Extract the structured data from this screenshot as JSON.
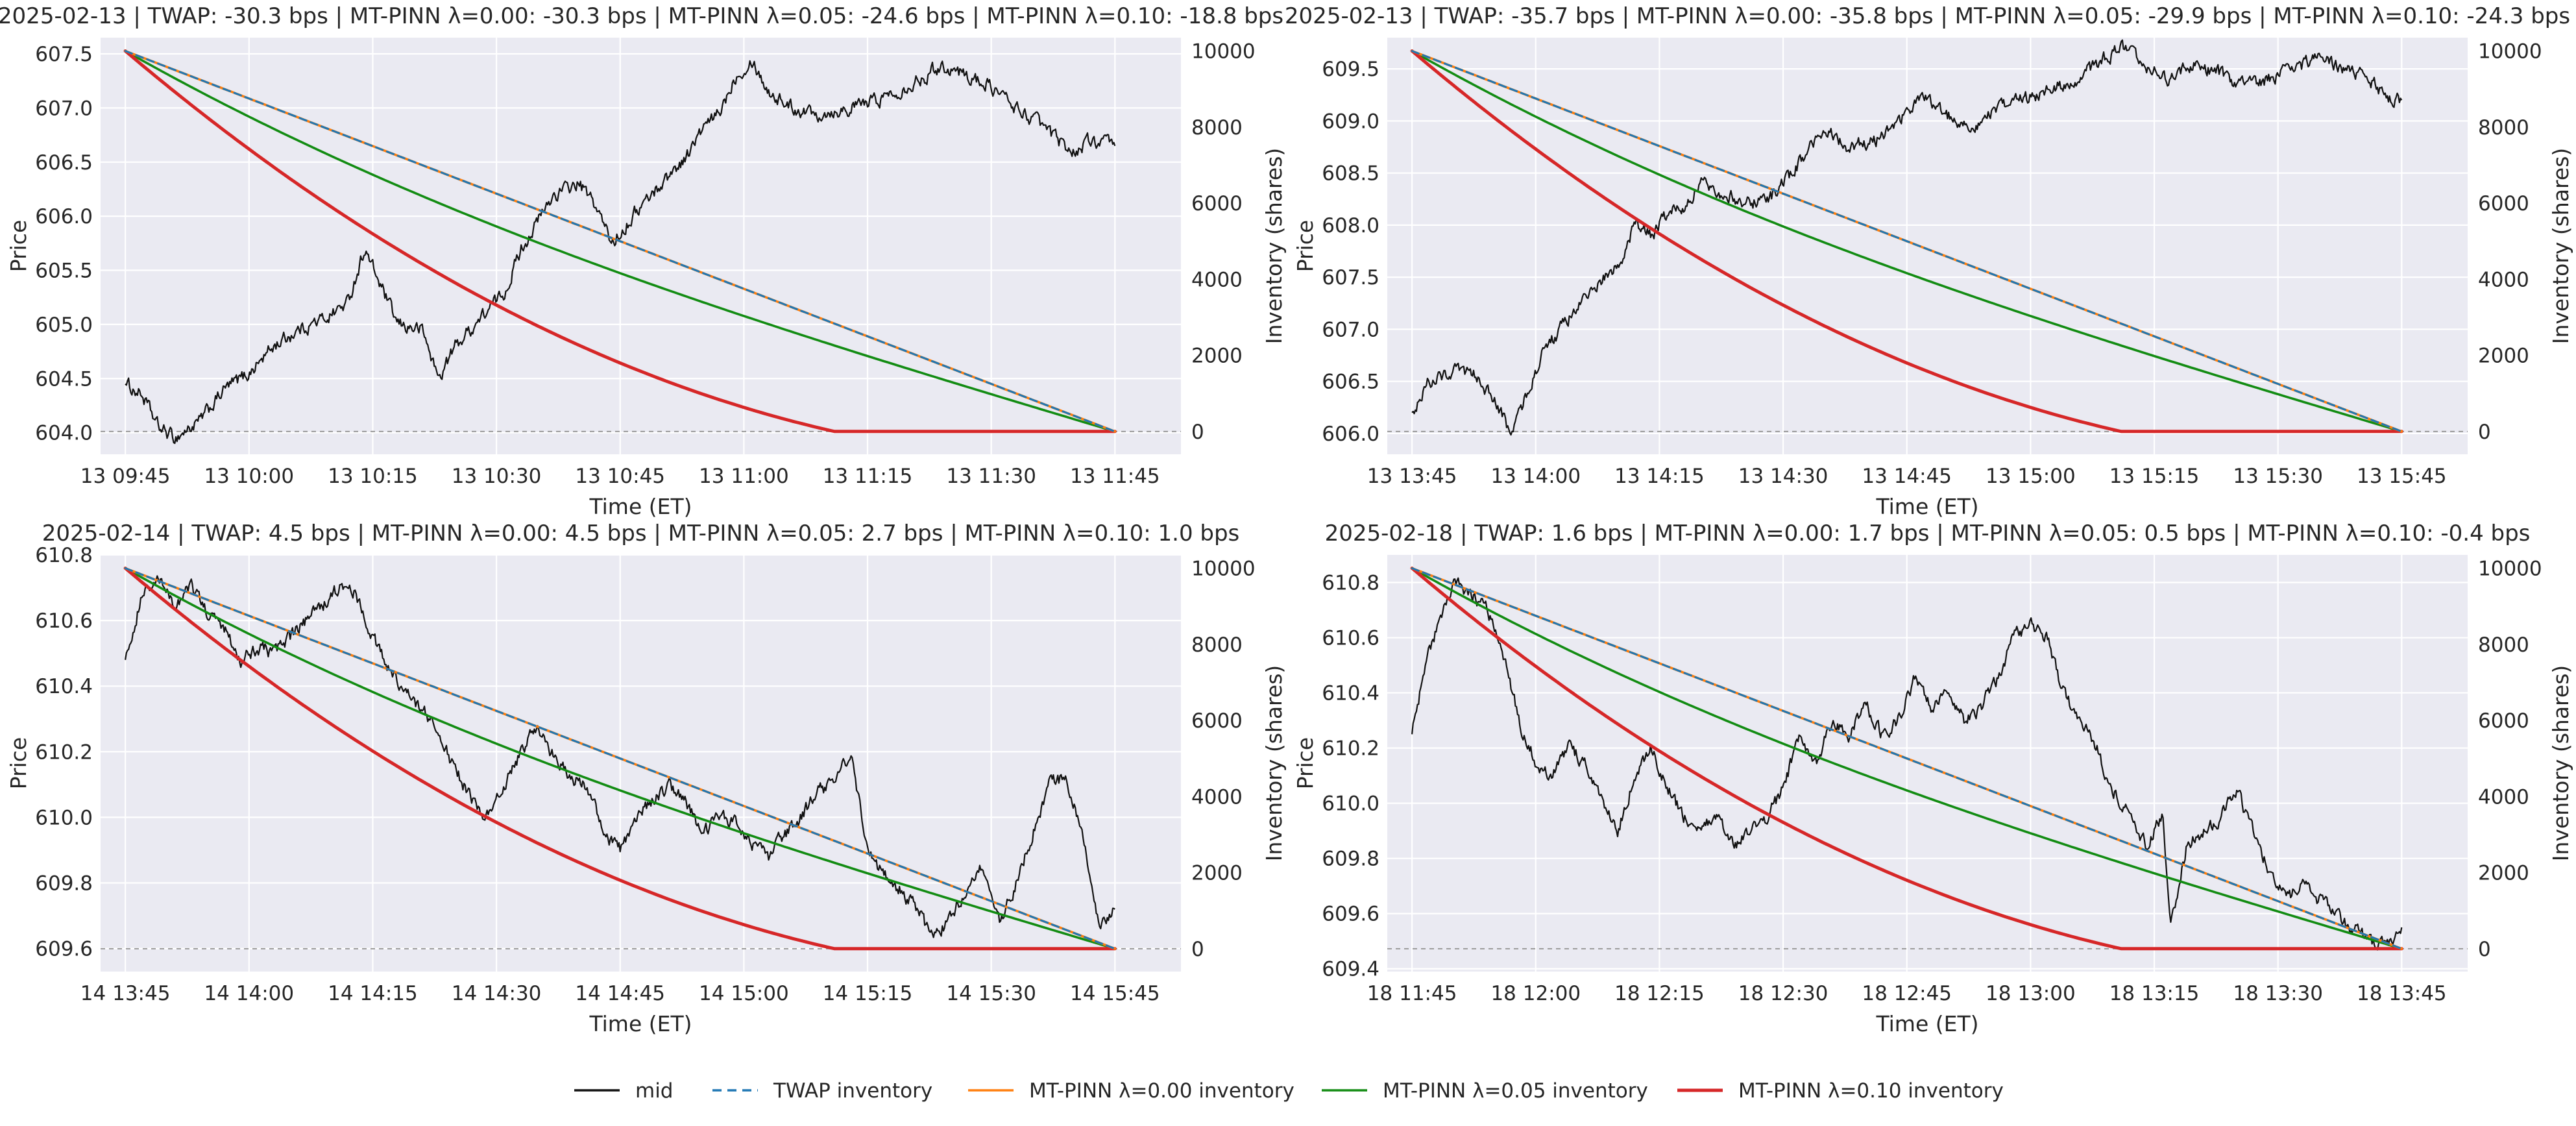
{
  "colors": {
    "mid": "#111111",
    "twap": "#1f77b4",
    "lam000": "#ff7f0e",
    "lam005": "#138c13",
    "lam010": "#d62728",
    "plot_bg": "#eaeaf2",
    "grid": "#ffffff",
    "zero_line": "#9a9a9a"
  },
  "legend": {
    "items": [
      {
        "label": "mid",
        "series": "mid",
        "style": "solid"
      },
      {
        "label": "TWAP inventory",
        "series": "twap",
        "style": "dashed"
      },
      {
        "label": "MT-PINN λ=0.00 inventory",
        "series": "lam000",
        "style": "solid"
      },
      {
        "label": "MT-PINN λ=0.05 inventory",
        "series": "lam005",
        "style": "solid"
      },
      {
        "label": "MT-PINN λ=0.10 inventory",
        "series": "lam010",
        "style": "solid"
      }
    ]
  },
  "chart_data": [
    {
      "type": "line",
      "title": "2025-02-13  |  TWAP: -30.3 bps | MT-PINN λ=0.00: -30.3 bps | MT-PINN λ=0.05: -24.6 bps | MT-PINN λ=0.10: -18.8 bps",
      "xlabel": "Time (ET)",
      "ylabel": "Price",
      "y2label": "Inventory (shares)",
      "x_ticks": [
        "13 09:45",
        "13 10:00",
        "13 10:15",
        "13 10:30",
        "13 10:45",
        "13 11:00",
        "13 11:15",
        "13 11:30",
        "13 11:45"
      ],
      "xlim_minutes": [
        -3,
        128
      ],
      "ylim": [
        603.8,
        607.65
      ],
      "y_ticks": [
        "604.0",
        "604.5",
        "605.0",
        "605.5",
        "606.0",
        "606.5",
        "607.0",
        "607.5"
      ],
      "y2lim": [
        -600,
        10350
      ],
      "y2_ticks": [
        "0",
        "2000",
        "4000",
        "6000",
        "8000",
        "10000"
      ],
      "inventory_start": 10000,
      "inventory_end": 0,
      "duration_minutes": 120,
      "lambda010_zero_minute": 86,
      "mid_price_anchors": [
        [
          0,
          604.45
        ],
        [
          2,
          604.35
        ],
        [
          4,
          604.05
        ],
        [
          6,
          603.95
        ],
        [
          9,
          604.1
        ],
        [
          12,
          604.4
        ],
        [
          15,
          604.55
        ],
        [
          18,
          604.8
        ],
        [
          21,
          604.95
        ],
        [
          24,
          605.05
        ],
        [
          27,
          605.2
        ],
        [
          29,
          605.7
        ],
        [
          31,
          605.35
        ],
        [
          33,
          605.0
        ],
        [
          36,
          604.95
        ],
        [
          38,
          604.5
        ],
        [
          40,
          604.8
        ],
        [
          43,
          605.05
        ],
        [
          46,
          605.3
        ],
        [
          48,
          605.7
        ],
        [
          50,
          605.95
        ],
        [
          52,
          606.2
        ],
        [
          55,
          606.3
        ],
        [
          57,
          606.1
        ],
        [
          59,
          605.75
        ],
        [
          62,
          606.05
        ],
        [
          65,
          606.3
        ],
        [
          68,
          606.55
        ],
        [
          70,
          606.8
        ],
        [
          72,
          606.95
        ],
        [
          74,
          607.3
        ],
        [
          76,
          607.45
        ],
        [
          78,
          607.15
        ],
        [
          81,
          607.0
        ],
        [
          84,
          606.95
        ],
        [
          88,
          607.0
        ],
        [
          92,
          607.1
        ],
        [
          96,
          607.25
        ],
        [
          99,
          607.4
        ],
        [
          102,
          607.3
        ],
        [
          105,
          607.2
        ],
        [
          108,
          607.0
        ],
        [
          111,
          606.85
        ],
        [
          113,
          606.7
        ],
        [
          115,
          606.6
        ],
        [
          117,
          606.7
        ],
        [
          120,
          606.65
        ]
      ]
    },
    {
      "type": "line",
      "title": "2025-02-13  |  TWAP: -35.7 bps | MT-PINN λ=0.00: -35.8 bps | MT-PINN λ=0.05: -29.9 bps | MT-PINN λ=0.10: -24.3 bps",
      "xlabel": "Time (ET)",
      "ylabel": "Price",
      "y2label": "Inventory (shares)",
      "x_ticks": [
        "13 13:45",
        "13 14:00",
        "13 14:15",
        "13 14:30",
        "13 14:45",
        "13 15:00",
        "13 15:15",
        "13 15:30",
        "13 15:45"
      ],
      "xlim_minutes": [
        -3,
        128
      ],
      "ylim": [
        605.8,
        609.8
      ],
      "y_ticks": [
        "606.0",
        "606.5",
        "607.0",
        "607.5",
        "608.0",
        "608.5",
        "609.0",
        "609.5"
      ],
      "y2lim": [
        -600,
        10350
      ],
      "y2_ticks": [
        "0",
        "2000",
        "4000",
        "6000",
        "8000",
        "10000"
      ],
      "inventory_start": 10000,
      "inventory_end": 0,
      "duration_minutes": 120,
      "lambda010_zero_minute": 86,
      "mid_price_anchors": [
        [
          0,
          606.2
        ],
        [
          2,
          606.5
        ],
        [
          5,
          606.6
        ],
        [
          8,
          606.55
        ],
        [
          10,
          606.3
        ],
        [
          12,
          606.0
        ],
        [
          14,
          606.4
        ],
        [
          16,
          606.8
        ],
        [
          19,
          607.1
        ],
        [
          22,
          607.4
        ],
        [
          25,
          607.6
        ],
        [
          27,
          608.0
        ],
        [
          29,
          607.9
        ],
        [
          31,
          608.1
        ],
        [
          33,
          608.2
        ],
        [
          35,
          608.4
        ],
        [
          38,
          608.3
        ],
        [
          41,
          608.2
        ],
        [
          44,
          608.3
        ],
        [
          47,
          608.6
        ],
        [
          50,
          608.9
        ],
        [
          53,
          608.75
        ],
        [
          56,
          608.8
        ],
        [
          59,
          609.0
        ],
        [
          62,
          609.25
        ],
        [
          65,
          609.05
        ],
        [
          68,
          608.95
        ],
        [
          71,
          609.1
        ],
        [
          74,
          609.2
        ],
        [
          77,
          609.3
        ],
        [
          80,
          609.35
        ],
        [
          83,
          609.55
        ],
        [
          86,
          609.7
        ],
        [
          89,
          609.5
        ],
        [
          92,
          609.4
        ],
        [
          95,
          609.55
        ],
        [
          98,
          609.45
        ],
        [
          101,
          609.35
        ],
        [
          104,
          609.4
        ],
        [
          107,
          609.5
        ],
        [
          110,
          609.6
        ],
        [
          113,
          609.5
        ],
        [
          116,
          609.4
        ],
        [
          118,
          609.25
        ],
        [
          120,
          609.2
        ]
      ]
    },
    {
      "type": "line",
      "title": "2025-02-14  |  TWAP: 4.5 bps | MT-PINN λ=0.00: 4.5 bps | MT-PINN λ=0.05: 2.7 bps | MT-PINN λ=0.10: 1.0 bps",
      "xlabel": "Time (ET)",
      "ylabel": "Price",
      "y2label": "Inventory (shares)",
      "x_ticks": [
        "14 13:45",
        "14 14:00",
        "14 14:15",
        "14 14:30",
        "14 14:45",
        "14 15:00",
        "14 15:15",
        "14 15:30",
        "14 15:45"
      ],
      "xlim_minutes": [
        -3,
        128
      ],
      "ylim": [
        609.53,
        610.8
      ],
      "y_ticks": [
        "609.6",
        "609.8",
        "610.0",
        "610.2",
        "610.4",
        "610.6",
        "610.8"
      ],
      "y2lim": [
        -600,
        10350
      ],
      "y2_ticks": [
        "0",
        "2000",
        "4000",
        "6000",
        "8000",
        "10000"
      ],
      "inventory_start": 10000,
      "inventory_end": 0,
      "duration_minutes": 120,
      "lambda010_zero_minute": 86,
      "mid_price_anchors": [
        [
          0,
          610.48
        ],
        [
          1,
          610.58
        ],
        [
          2,
          610.68
        ],
        [
          4,
          610.72
        ],
        [
          6,
          610.65
        ],
        [
          8,
          610.7
        ],
        [
          10,
          610.62
        ],
        [
          12,
          610.58
        ],
        [
          14,
          610.48
        ],
        [
          16,
          610.52
        ],
        [
          18,
          610.5
        ],
        [
          20,
          610.55
        ],
        [
          22,
          610.6
        ],
        [
          24,
          610.65
        ],
        [
          26,
          610.7
        ],
        [
          28,
          610.68
        ],
        [
          30,
          610.55
        ],
        [
          32,
          610.45
        ],
        [
          34,
          610.38
        ],
        [
          36,
          610.33
        ],
        [
          38,
          610.25
        ],
        [
          40,
          610.15
        ],
        [
          42,
          610.05
        ],
        [
          44,
          610.0
        ],
        [
          46,
          610.1
        ],
        [
          48,
          610.2
        ],
        [
          50,
          610.28
        ],
        [
          52,
          610.18
        ],
        [
          54,
          610.12
        ],
        [
          56,
          610.1
        ],
        [
          58,
          609.95
        ],
        [
          60,
          609.9
        ],
        [
          62,
          610.0
        ],
        [
          64,
          610.05
        ],
        [
          66,
          610.1
        ],
        [
          68,
          610.05
        ],
        [
          70,
          609.95
        ],
        [
          72,
          610.0
        ],
        [
          74,
          609.98
        ],
        [
          76,
          609.92
        ],
        [
          78,
          609.88
        ],
        [
          80,
          609.95
        ],
        [
          82,
          610.0
        ],
        [
          84,
          610.08
        ],
        [
          86,
          610.1
        ],
        [
          88,
          610.2
        ],
        [
          90,
          609.9
        ],
        [
          92,
          609.82
        ],
        [
          94,
          609.78
        ],
        [
          96,
          609.72
        ],
        [
          98,
          609.62
        ],
        [
          100,
          609.7
        ],
        [
          102,
          609.78
        ],
        [
          104,
          609.85
        ],
        [
          106,
          609.68
        ],
        [
          108,
          609.8
        ],
        [
          110,
          609.95
        ],
        [
          112,
          610.1
        ],
        [
          114,
          610.12
        ],
        [
          116,
          609.95
        ],
        [
          118,
          609.68
        ],
        [
          120,
          609.72
        ]
      ]
    },
    {
      "type": "line",
      "title": "2025-02-18  |  TWAP: 1.6 bps | MT-PINN λ=0.00: 1.7 bps | MT-PINN λ=0.05: 0.5 bps | MT-PINN λ=0.10: -0.4 bps",
      "xlabel": "Time (ET)",
      "ylabel": "Price",
      "y2label": "Inventory (shares)",
      "x_ticks": [
        "18 11:45",
        "18 12:00",
        "18 12:15",
        "18 12:30",
        "18 12:45",
        "18 13:00",
        "18 13:15",
        "18 13:30",
        "18 13:45"
      ],
      "xlim_minutes": [
        -3,
        128
      ],
      "ylim": [
        609.39,
        610.9
      ],
      "y_ticks": [
        "609.4",
        "609.6",
        "609.8",
        "610.0",
        "610.2",
        "610.4",
        "610.6",
        "610.8"
      ],
      "y2lim": [
        -600,
        10350
      ],
      "y2_ticks": [
        "0",
        "2000",
        "4000",
        "6000",
        "8000",
        "10000"
      ],
      "inventory_start": 10000,
      "inventory_end": 0,
      "duration_minutes": 120,
      "lambda010_zero_minute": 86,
      "mid_price_anchors": [
        [
          0,
          610.25
        ],
        [
          1,
          610.4
        ],
        [
          2,
          610.55
        ],
        [
          4,
          610.7
        ],
        [
          5,
          610.8
        ],
        [
          7,
          610.75
        ],
        [
          9,
          610.72
        ],
        [
          11,
          610.55
        ],
        [
          13,
          610.3
        ],
        [
          15,
          610.15
        ],
        [
          17,
          610.1
        ],
        [
          19,
          610.2
        ],
        [
          21,
          610.15
        ],
        [
          23,
          610.0
        ],
        [
          25,
          609.9
        ],
        [
          27,
          610.1
        ],
        [
          29,
          610.2
        ],
        [
          31,
          610.05
        ],
        [
          33,
          609.95
        ],
        [
          35,
          609.9
        ],
        [
          37,
          609.95
        ],
        [
          39,
          609.85
        ],
        [
          41,
          609.9
        ],
        [
          43,
          609.95
        ],
        [
          45,
          610.05
        ],
        [
          47,
          610.25
        ],
        [
          49,
          610.15
        ],
        [
          51,
          610.3
        ],
        [
          53,
          610.25
        ],
        [
          55,
          610.35
        ],
        [
          57,
          610.25
        ],
        [
          59,
          610.3
        ],
        [
          61,
          610.45
        ],
        [
          63,
          610.35
        ],
        [
          65,
          610.4
        ],
        [
          67,
          610.3
        ],
        [
          69,
          610.35
        ],
        [
          71,
          610.45
        ],
        [
          73,
          610.6
        ],
        [
          75,
          610.65
        ],
        [
          77,
          610.6
        ],
        [
          79,
          610.4
        ],
        [
          81,
          610.3
        ],
        [
          83,
          610.2
        ],
        [
          85,
          610.05
        ],
        [
          87,
          609.95
        ],
        [
          89,
          609.85
        ],
        [
          91,
          609.95
        ],
        [
          92,
          609.57
        ],
        [
          94,
          609.85
        ],
        [
          96,
          609.9
        ],
        [
          98,
          609.95
        ],
        [
          100,
          610.05
        ],
        [
          102,
          609.9
        ],
        [
          104,
          609.75
        ],
        [
          106,
          609.65
        ],
        [
          108,
          609.7
        ],
        [
          110,
          609.65
        ],
        [
          112,
          609.6
        ],
        [
          114,
          609.55
        ],
        [
          116,
          609.5
        ],
        [
          118,
          609.48
        ],
        [
          120,
          609.55
        ]
      ]
    }
  ]
}
